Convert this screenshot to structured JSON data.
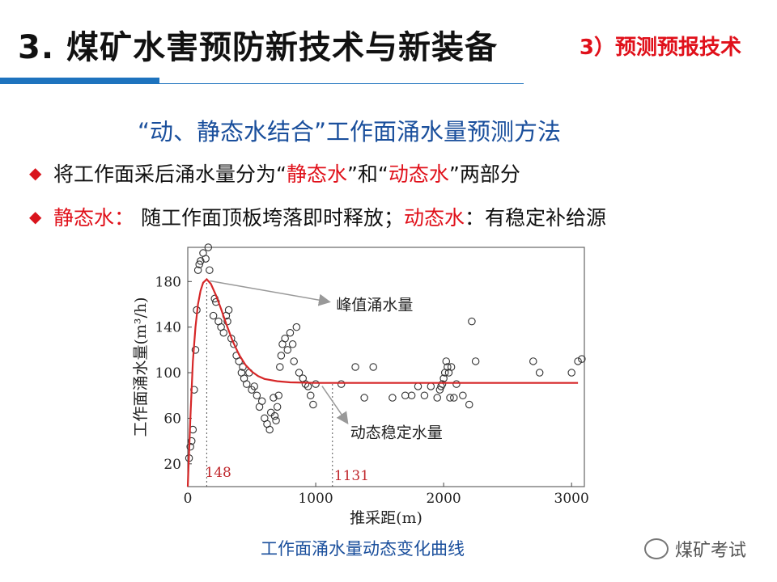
{
  "header": {
    "title": "3. 煤矿水害预防新技术与新装备",
    "section": "3）预测预报技术"
  },
  "content": {
    "heading": "“动、静态水结合”工作面涌水量预测方法",
    "bullet1": {
      "prefix": "将工作面采后涌水量分为“",
      "red1": "静态水",
      "mid": "”和“",
      "red2": "动态水",
      "suffix": "”两部分"
    },
    "bullet2": {
      "red1": "静态水：",
      "text1": " 随工作面顶板垮落即时释放；",
      "red2": "动态水",
      "text2": "：有稳定补给源"
    },
    "caption": "工作面涌水量动态变化曲线"
  },
  "watermark": {
    "text": "煤矿考试",
    "icon": "wechat-icon"
  },
  "colors": {
    "accent_blue": "#1e73be",
    "red": "#e0101a",
    "heading_blue": "#1a4f9c",
    "curve": "#d62728"
  },
  "chart_data": {
    "type": "scatter",
    "xlabel": "推采距(m)",
    "ylabel": "工作面涌水量(m³/h)",
    "xlim": [
      0,
      3100
    ],
    "ylim": [
      0,
      210
    ],
    "xticks": [
      0,
      1000,
      2000,
      3000
    ],
    "yticks": [
      20,
      60,
      100,
      140,
      180
    ],
    "markers": [
      {
        "x": 148,
        "label": "148"
      },
      {
        "x": 1131,
        "label": "1131"
      }
    ],
    "annotations": [
      {
        "text": "峰值涌水量",
        "target_x": 148,
        "target_y": 182
      },
      {
        "text": "动态稳定水量",
        "target_x": 1131,
        "target_y": 91
      }
    ],
    "fit_curve": {
      "name": "",
      "points": [
        [
          0,
          0
        ],
        [
          20,
          60
        ],
        [
          40,
          110
        ],
        [
          60,
          140
        ],
        [
          80,
          160
        ],
        [
          100,
          172
        ],
        [
          120,
          179
        ],
        [
          148,
          182
        ],
        [
          180,
          178
        ],
        [
          220,
          168
        ],
        [
          260,
          156
        ],
        [
          300,
          143
        ],
        [
          350,
          128
        ],
        [
          400,
          116
        ],
        [
          450,
          107
        ],
        [
          500,
          101
        ],
        [
          550,
          97
        ],
        [
          600,
          94.5
        ],
        [
          700,
          92.5
        ],
        [
          800,
          91.5
        ],
        [
          1000,
          91
        ],
        [
          1131,
          91
        ],
        [
          1500,
          91
        ],
        [
          2000,
          91
        ],
        [
          2500,
          91
        ],
        [
          3050,
          91
        ]
      ]
    },
    "scatter": {
      "name": "",
      "points": [
        [
          10,
          25
        ],
        [
          20,
          35
        ],
        [
          30,
          40
        ],
        [
          40,
          50
        ],
        [
          50,
          85
        ],
        [
          60,
          120
        ],
        [
          70,
          155
        ],
        [
          80,
          190
        ],
        [
          90,
          195
        ],
        [
          100,
          198
        ],
        [
          120,
          205
        ],
        [
          140,
          200
        ],
        [
          160,
          210
        ],
        [
          170,
          190
        ],
        [
          200,
          150
        ],
        [
          210,
          165
        ],
        [
          220,
          162
        ],
        [
          240,
          145
        ],
        [
          260,
          140
        ],
        [
          280,
          135
        ],
        [
          300,
          150
        ],
        [
          310,
          145
        ],
        [
          320,
          155
        ],
        [
          340,
          130
        ],
        [
          360,
          125
        ],
        [
          380,
          115
        ],
        [
          400,
          110
        ],
        [
          420,
          100
        ],
        [
          430,
          105
        ],
        [
          440,
          95
        ],
        [
          460,
          90
        ],
        [
          480,
          100
        ],
        [
          500,
          85
        ],
        [
          520,
          88
        ],
        [
          540,
          80
        ],
        [
          560,
          70
        ],
        [
          580,
          75
        ],
        [
          600,
          60
        ],
        [
          620,
          55
        ],
        [
          640,
          50
        ],
        [
          650,
          65
        ],
        [
          670,
          78
        ],
        [
          680,
          62
        ],
        [
          690,
          58
        ],
        [
          700,
          70
        ],
        [
          710,
          80
        ],
        [
          720,
          105
        ],
        [
          730,
          115
        ],
        [
          740,
          125
        ],
        [
          760,
          130
        ],
        [
          780,
          120
        ],
        [
          800,
          135
        ],
        [
          820,
          125
        ],
        [
          830,
          110
        ],
        [
          850,
          140
        ],
        [
          870,
          100
        ],
        [
          900,
          95
        ],
        [
          920,
          90
        ],
        [
          940,
          88
        ],
        [
          960,
          80
        ],
        [
          980,
          72
        ],
        [
          1000,
          90
        ],
        [
          1200,
          90
        ],
        [
          1310,
          105
        ],
        [
          1380,
          78
        ],
        [
          1450,
          105
        ],
        [
          1600,
          78
        ],
        [
          1700,
          80
        ],
        [
          1750,
          80
        ],
        [
          1800,
          88
        ],
        [
          1850,
          80
        ],
        [
          1900,
          88
        ],
        [
          1950,
          78
        ],
        [
          1970,
          85
        ],
        [
          1980,
          88
        ],
        [
          1990,
          90
        ],
        [
          2000,
          95
        ],
        [
          2010,
          100
        ],
        [
          2020,
          110
        ],
        [
          2030,
          105
        ],
        [
          2040,
          100
        ],
        [
          2050,
          78
        ],
        [
          2060,
          105
        ],
        [
          2080,
          78
        ],
        [
          2100,
          90
        ],
        [
          2150,
          80
        ],
        [
          2200,
          72
        ],
        [
          2220,
          145
        ],
        [
          2250,
          110
        ],
        [
          2700,
          110
        ],
        [
          2750,
          100
        ],
        [
          3000,
          100
        ],
        [
          3050,
          110
        ],
        [
          3080,
          112
        ]
      ]
    }
  }
}
